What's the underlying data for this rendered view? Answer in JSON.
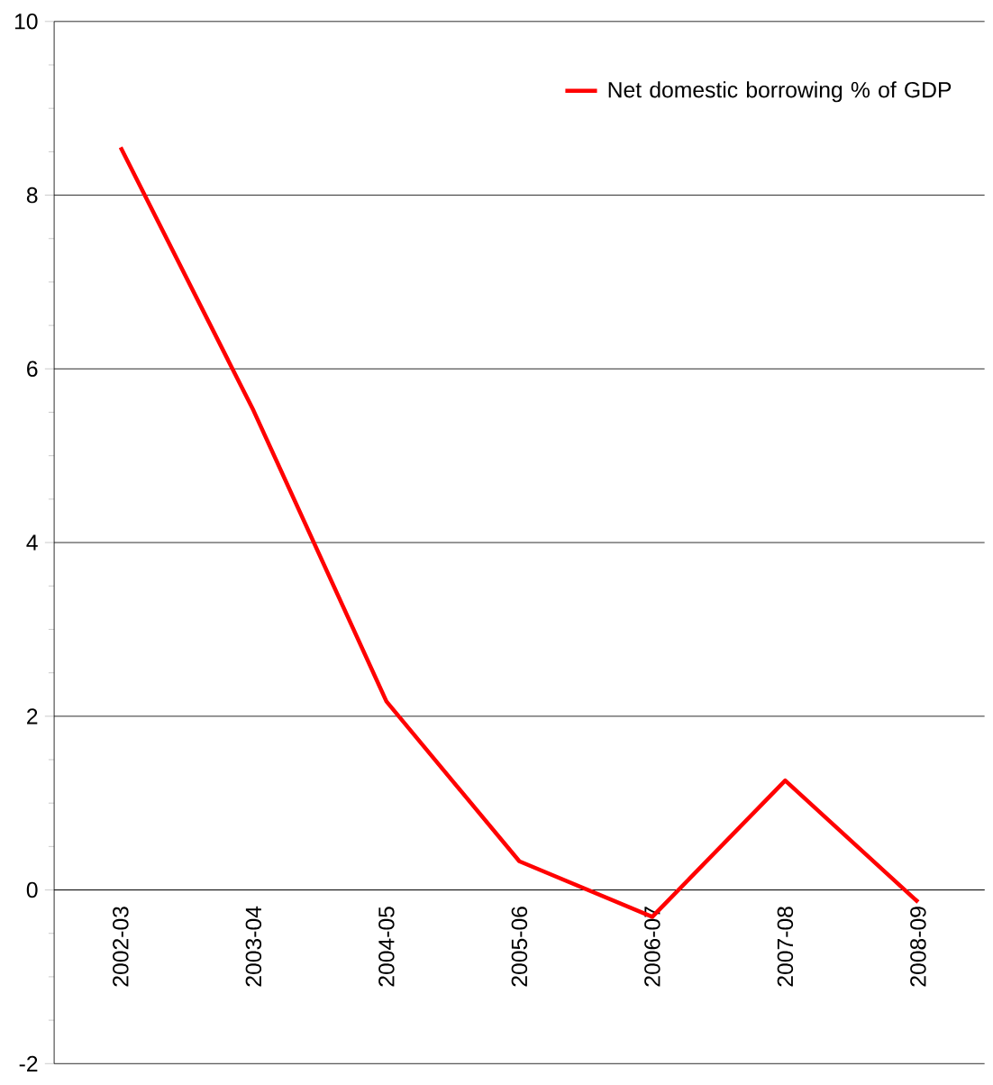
{
  "chart_data": {
    "type": "line",
    "categories": [
      "2002-03",
      "2003-04",
      "2004-05",
      "2005-06",
      "2006-07",
      "2007-08",
      "2008-09"
    ],
    "series": [
      {
        "name": "Net domestic borrowing % of GDP",
        "color": "#ff0000",
        "values": [
          8.55,
          5.52,
          2.17,
          0.33,
          -0.31,
          1.26,
          -0.14
        ]
      }
    ],
    "ylim": [
      -2,
      10
    ],
    "yticks": [
      -2,
      0,
      2,
      4,
      6,
      8,
      10
    ],
    "grid": "y",
    "legend": "top right",
    "marker": "none",
    "line_style": "solid"
  }
}
